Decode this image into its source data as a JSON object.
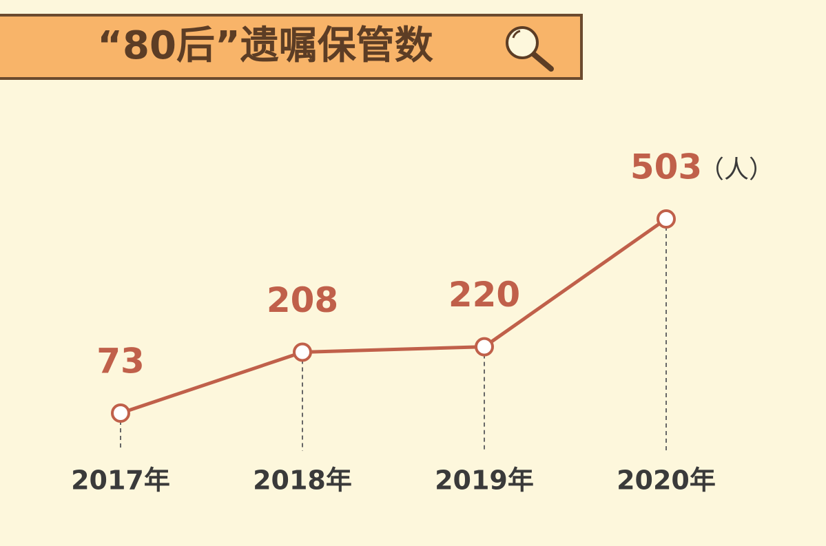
{
  "chart_data": {
    "type": "line",
    "title": "“80后”遗嘱保管数",
    "categories": [
      "2017年",
      "2018年",
      "2019年",
      "2020年"
    ],
    "values": [
      73,
      208,
      220,
      503
    ],
    "unit": "（人）",
    "color": "#c0604a"
  }
}
